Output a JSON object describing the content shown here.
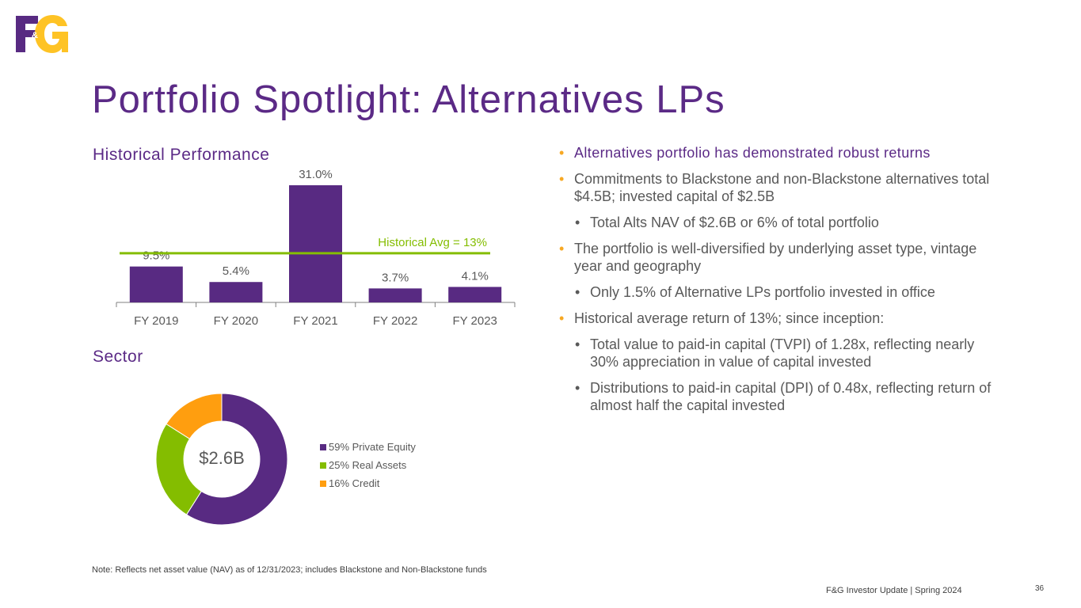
{
  "logo_text": "F&G",
  "title": "Portfolio Spotlight:  Alternatives LPs",
  "historical_heading": "Historical Performance",
  "sector_heading": "Sector",
  "bullets": [
    {
      "text": "Alternatives portfolio has demonstrated robust returns",
      "level": 1,
      "highlight": true
    },
    {
      "text": "Commitments to Blackstone and non-Blackstone alternatives total $4.5B; invested capital of $2.5B",
      "level": 1
    },
    {
      "text": "Total Alts NAV of $2.6B or 6% of total portfolio",
      "level": 2
    },
    {
      "text": "The portfolio is well-diversified by underlying asset type, vintage year and geography",
      "level": 1
    },
    {
      "text": "Only 1.5% of Alternative LPs portfolio invested in office",
      "level": 2
    },
    {
      "text": "Historical average return of 13%; since inception:",
      "level": 1
    },
    {
      "text": "Total value to paid-in capital (TVPI) of 1.28x, reflecting nearly 30% appreciation in value of capital invested",
      "level": 2
    },
    {
      "text": "Distributions to paid-in capital (DPI) of 0.48x, reflecting return of almost half the capital invested",
      "level": 2
    }
  ],
  "note": "Note: Reflects net asset value (NAV) as of 12/31/2023; includes Blackstone and Non-Blackstone funds",
  "footer": "F&G Investor Update | Spring 2024",
  "page_number": "36",
  "colors": {
    "purple": "#582a82",
    "green": "#84bd00",
    "orange": "#ff9e0f"
  },
  "chart_data": [
    {
      "type": "bar",
      "title": "Historical Performance",
      "categories": [
        "FY 2019",
        "FY 2020",
        "FY 2021",
        "FY 2022",
        "FY 2023"
      ],
      "values": [
        9.5,
        5.4,
        31.0,
        3.7,
        4.1
      ],
      "labels": [
        "9.5%",
        "5.4%",
        "31.0%",
        "3.7%",
        "4.1%"
      ],
      "reference_line": {
        "label": "Historical Avg = 13%",
        "value": 13
      },
      "ylim": [
        0,
        31
      ]
    },
    {
      "type": "pie",
      "title": "Sector",
      "center_label": "$2.6B",
      "slices": [
        {
          "name": "Private Equity",
          "value": 59,
          "legend": "59% Private Equity",
          "color": "#582a82"
        },
        {
          "name": "Real Assets",
          "value": 25,
          "legend": "25% Real Assets",
          "color": "#84bd00"
        },
        {
          "name": "Credit",
          "value": 16,
          "legend": "16% Credit",
          "color": "#ff9e0f"
        }
      ]
    }
  ]
}
